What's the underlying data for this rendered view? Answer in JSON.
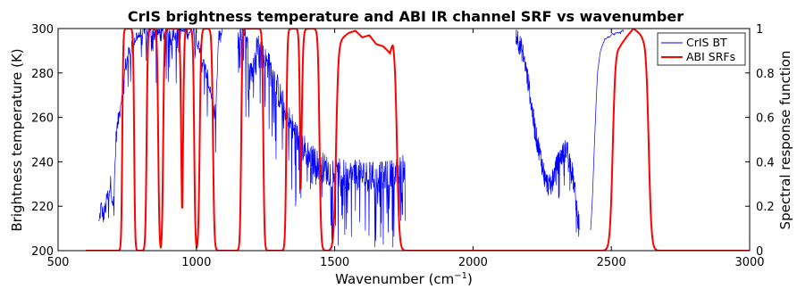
{
  "chart_data": {
    "type": "line",
    "title": "CrIS brightness temperature and ABI IR channel SRF vs wavenumber",
    "xlabel": "Wavenumber (cm",
    "xlabel_superscript": "−1",
    "xlabel_close": ")",
    "ylabel_left": "Brightness temperature (K)",
    "ylabel_right": "Spectral response function",
    "xlim": [
      500,
      3000
    ],
    "ylim_left": [
      200,
      300
    ],
    "ylim_right": [
      0,
      1
    ],
    "x_ticks": [
      "500",
      "1000",
      "1500",
      "2000",
      "2500",
      "3000"
    ],
    "y_left_ticks": [
      "200",
      "220",
      "240",
      "260",
      "280",
      "300"
    ],
    "y_right_ticks": [
      "0",
      "0.2",
      "0.4",
      "0.6",
      "0.8",
      "1"
    ],
    "grid": false,
    "legend_position": "top-right",
    "colors": {
      "cris": "#0000ff",
      "abi": "#ff0000",
      "axes": "#000000"
    },
    "series": [
      {
        "name": "CrIS BT",
        "axis": "left",
        "segments": [
          {
            "x_start": 648,
            "x_end": 1095,
            "step": 1.5,
            "anchors": [
              [
                648,
                212
              ],
              [
                655,
                220
              ],
              [
                665,
                215
              ],
              [
                675,
                222
              ],
              [
                690,
                230
              ],
              [
                700,
                220
              ],
              [
                710,
                252
              ],
              [
                725,
                265
              ],
              [
                735,
                275
              ],
              [
                745,
                284
              ],
              [
                755,
                288
              ],
              [
                765,
                292
              ],
              [
                780,
                296
              ],
              [
                800,
                298
              ],
              [
                840,
                298
              ],
              [
                880,
                298
              ],
              [
                950,
                299
              ],
              [
                985,
                299
              ],
              [
                1000,
                297
              ],
              [
                1010,
                293
              ],
              [
                1025,
                284
              ],
              [
                1040,
                278
              ],
              [
                1055,
                270
              ],
              [
                1062,
                262
              ],
              [
                1070,
                262
              ],
              [
                1080,
                295
              ],
              [
                1095,
                298
              ]
            ],
            "noise": 4,
            "drop_prob": 0.12,
            "drop_depth": 22
          },
          {
            "x_start": 1150,
            "x_end": 1755,
            "step": 1.2,
            "anchors": [
              [
                1150,
                297
              ],
              [
                1165,
                297
              ],
              [
                1180,
                293
              ],
              [
                1195,
                285
              ],
              [
                1205,
                280
              ],
              [
                1212,
                298
              ],
              [
                1222,
                292
              ],
              [
                1240,
                287
              ],
              [
                1260,
                283
              ],
              [
                1280,
                278
              ],
              [
                1300,
                270
              ],
              [
                1325,
                262
              ],
              [
                1350,
                254
              ],
              [
                1375,
                248
              ],
              [
                1400,
                244
              ],
              [
                1425,
                240
              ],
              [
                1450,
                238
              ],
              [
                1475,
                236
              ],
              [
                1500,
                235
              ],
              [
                1550,
                234
              ],
              [
                1600,
                234
              ],
              [
                1650,
                233
              ],
              [
                1700,
                234
              ],
              [
                1740,
                236
              ],
              [
                1755,
                238
              ]
            ],
            "noise": 7,
            "drop_prob": 0.18,
            "drop_depth": 30
          },
          {
            "x_start": 2155,
            "x_end": 2385,
            "step": 0.8,
            "anchors": [
              [
                2155,
                298
              ],
              [
                2165,
                294
              ],
              [
                2180,
                289
              ],
              [
                2200,
                276
              ],
              [
                2215,
                262
              ],
              [
                2230,
                250
              ],
              [
                2245,
                242
              ],
              [
                2260,
                232
              ],
              [
                2275,
                229
              ],
              [
                2290,
                233
              ],
              [
                2305,
                239
              ],
              [
                2320,
                243
              ],
              [
                2340,
                246
              ],
              [
                2350,
                240
              ],
              [
                2360,
                234
              ],
              [
                2370,
                225
              ],
              [
                2378,
                215
              ],
              [
                2385,
                212
              ]
            ],
            "noise": 5,
            "drop_prob": 0.08,
            "drop_depth": 16
          },
          {
            "x_start": 2425,
            "x_end": 2545,
            "step": 2,
            "anchors": [
              [
                2425,
                209
              ],
              [
                2432,
                224
              ],
              [
                2440,
                252
              ],
              [
                2450,
                280
              ],
              [
                2460,
                290
              ],
              [
                2475,
                295
              ],
              [
                2500,
                297
              ],
              [
                2530,
                298
              ],
              [
                2545,
                299
              ]
            ],
            "noise": 0.6,
            "drop_prob": 0.0,
            "drop_depth": 0
          }
        ]
      },
      {
        "name": "ABI SRFs",
        "axis": "right",
        "bands": [
          {
            "lo": 732,
            "hi": 775,
            "edge": 5
          },
          {
            "lo": 820,
            "hi": 862,
            "edge": 6
          },
          {
            "lo": 880,
            "hi": 945,
            "edge": 6
          },
          {
            "lo": 952,
            "hi": 992,
            "edge": 6
          },
          {
            "lo": 1012,
            "hi": 1060,
            "edge": 7
          },
          {
            "lo": 1162,
            "hi": 1242,
            "edge": 6
          },
          {
            "lo": 1325,
            "hi": 1375,
            "edge": 6
          },
          {
            "lo": 1380,
            "hi": 1445,
            "edge": 8
          },
          {
            "lo": 1505,
            "hi": 1725,
            "edge": 12,
            "ripple": [
              [
                1520,
                0.95
              ],
              [
                1550,
                0.98
              ],
              [
                1575,
                0.99
              ],
              [
                1600,
                0.96
              ],
              [
                1625,
                0.97
              ],
              [
                1650,
                0.93
              ],
              [
                1675,
                0.92
              ],
              [
                1700,
                0.89
              ],
              [
                1710,
                0.95
              ]
            ]
          },
          {
            "lo": 2505,
            "hi": 2635,
            "edge": 14,
            "ripple": [
              [
                2530,
                0.92
              ],
              [
                2560,
                0.97
              ],
              [
                2580,
                1.0
              ],
              [
                2600,
                0.98
              ],
              [
                2615,
                0.96
              ]
            ]
          }
        ]
      }
    ]
  }
}
